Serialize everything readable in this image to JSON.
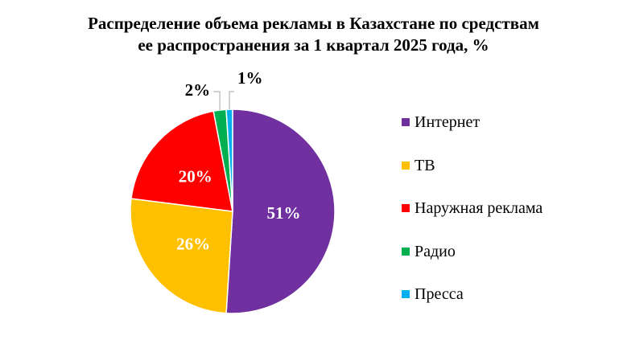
{
  "title": {
    "line1": "Распределение объема рекламы  в Казахстане по средствам",
    "line2": "ее распространения за 1 квартал 2025 года, %"
  },
  "chart_data": {
    "type": "pie",
    "title": "Распределение объема рекламы  в Казахстане по средствам ее распространения за 1 квартал 2025 года, %",
    "categories": [
      "Интернет",
      "ТВ",
      "Наружная реклама",
      "Радио",
      "Пресса"
    ],
    "values": [
      51,
      26,
      20,
      2,
      1
    ],
    "labels": [
      "51%",
      "26%",
      "20%",
      "2%",
      "1%"
    ],
    "colors": [
      "#7030A0",
      "#FFC000",
      "#FF0000",
      "#00B050",
      "#00B0F0"
    ],
    "legend": "right",
    "start": "top",
    "direction": "clockwise"
  }
}
